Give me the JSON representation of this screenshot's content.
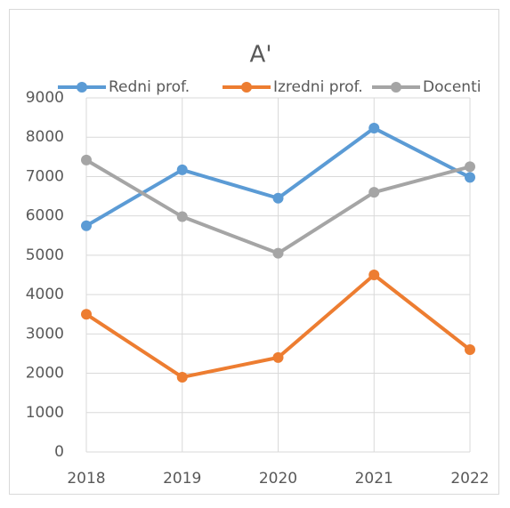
{
  "chart_data": {
    "type": "line",
    "title": "A'",
    "categories": [
      "2018",
      "2019",
      "2020",
      "2021",
      "2022"
    ],
    "series": [
      {
        "name": "Redni prof.",
        "color": "#5b9bd5",
        "values": [
          5750,
          7170,
          6450,
          8230,
          6980
        ]
      },
      {
        "name": "Izredni prof.",
        "color": "#ed7d31",
        "values": [
          3500,
          1900,
          2400,
          4500,
          2600
        ]
      },
      {
        "name": "Docenti",
        "color": "#a5a5a5",
        "values": [
          7420,
          5980,
          5050,
          6600,
          7250
        ]
      }
    ],
    "ylim": [
      0,
      9000
    ],
    "yticks": [
      0,
      1000,
      2000,
      3000,
      4000,
      5000,
      6000,
      7000,
      8000,
      9000
    ],
    "grid": true,
    "legend": "top"
  }
}
